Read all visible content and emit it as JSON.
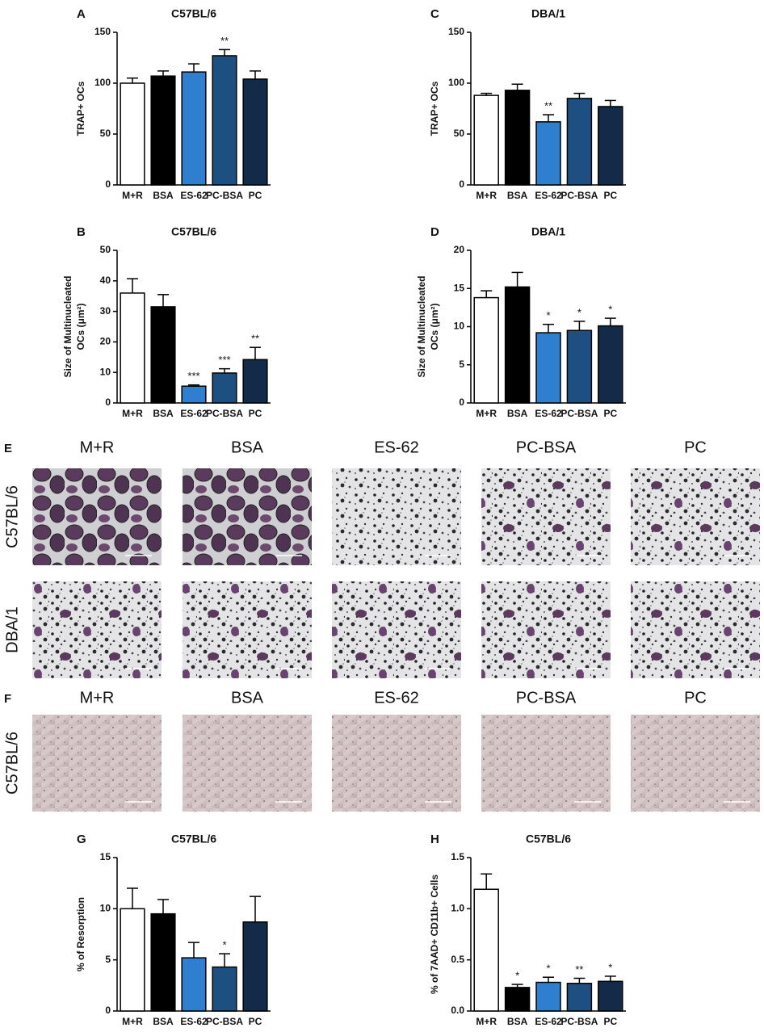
{
  "chart_data": [
    {
      "type": "bar",
      "panel": "A",
      "title": "C57BL/6",
      "ylabel": [
        "TRAP+ OCs"
      ],
      "categories": [
        "M+R",
        "BSA",
        "ES-62",
        "PC-BSA",
        "PC"
      ],
      "values": [
        100,
        107,
        111,
        127,
        104
      ],
      "errors": [
        5,
        5,
        8,
        6,
        8
      ],
      "annotations": [
        null,
        null,
        null,
        "**",
        null
      ],
      "colors": [
        "#ffffff",
        "#000000",
        "#2f7fd0",
        "#1d4f80",
        "#132a48"
      ],
      "ylim": [
        0,
        150
      ],
      "yticks": [
        0,
        50,
        100,
        150
      ]
    },
    {
      "type": "bar",
      "panel": "C",
      "title": "DBA/1",
      "ylabel": [
        "TRAP+ OCs"
      ],
      "categories": [
        "M+R",
        "BSA",
        "ES-62",
        "PC-BSA",
        "PC"
      ],
      "values": [
        88,
        93,
        62,
        85,
        77
      ],
      "errors": [
        2,
        6,
        7,
        5,
        6
      ],
      "annotations": [
        null,
        null,
        "**",
        null,
        null
      ],
      "colors": [
        "#ffffff",
        "#000000",
        "#2f7fd0",
        "#1d4f80",
        "#132a48"
      ],
      "ylim": [
        0,
        150
      ],
      "yticks": [
        0,
        50,
        100,
        150
      ]
    },
    {
      "type": "bar",
      "panel": "B",
      "title": "C57BL/6",
      "ylabel": [
        "Size of Multinucleated",
        "OCs (μm²)"
      ],
      "categories": [
        "M+R",
        "BSA",
        "ES-62",
        "PC-BSA",
        "PC"
      ],
      "values": [
        36,
        31.5,
        5.5,
        9.8,
        14.2
      ],
      "errors": [
        4.7,
        4,
        0.4,
        1.4,
        4
      ],
      "annotations": [
        null,
        null,
        "***",
        "***",
        "**"
      ],
      "colors": [
        "#ffffff",
        "#000000",
        "#2f7fd0",
        "#1d4f80",
        "#132a48"
      ],
      "ylim": [
        0,
        50
      ],
      "yticks": [
        0,
        10,
        20,
        30,
        40,
        50
      ]
    },
    {
      "type": "bar",
      "panel": "D",
      "title": "DBA/1",
      "ylabel": [
        "Size of Multinucleated",
        "OCs (μm²)"
      ],
      "categories": [
        "M+R",
        "BSA",
        "ES-62",
        "PC-BSA",
        "PC"
      ],
      "values": [
        13.8,
        15.2,
        9.2,
        9.5,
        10.1
      ],
      "errors": [
        0.9,
        1.9,
        1.1,
        1.2,
        1
      ],
      "annotations": [
        null,
        null,
        "*",
        "*",
        "*"
      ],
      "colors": [
        "#ffffff",
        "#000000",
        "#2f7fd0",
        "#1d4f80",
        "#132a48"
      ],
      "ylim": [
        0,
        20
      ],
      "yticks": [
        0,
        5,
        10,
        15,
        20
      ]
    },
    {
      "type": "bar",
      "panel": "G",
      "title": "C57BL/6",
      "ylabel": [
        "% of Resorption"
      ],
      "categories": [
        "M+R",
        "BSA",
        "ES-62",
        "PC-BSA",
        "PC"
      ],
      "values": [
        10,
        9.5,
        5.2,
        4.3,
        8.7
      ],
      "errors": [
        2,
        1.4,
        1.5,
        1.3,
        2.5
      ],
      "annotations": [
        null,
        null,
        null,
        "*",
        null
      ],
      "colors": [
        "#ffffff",
        "#000000",
        "#2f7fd0",
        "#1d4f80",
        "#132a48"
      ],
      "ylim": [
        0,
        15
      ],
      "yticks": [
        0,
        5,
        10,
        15
      ]
    },
    {
      "type": "bar",
      "panel": "H",
      "title": "C57BL/6",
      "ylabel": [
        "% of 7AAD+ CD11b+ Cells"
      ],
      "categories": [
        "M+R",
        "BSA",
        "ES-62",
        "PC-BSA",
        "PC"
      ],
      "values": [
        1.19,
        0.23,
        0.28,
        0.27,
        0.29
      ],
      "errors": [
        0.15,
        0.03,
        0.05,
        0.05,
        0.05
      ],
      "annotations": [
        null,
        "*",
        "*",
        "**",
        "*"
      ],
      "colors": [
        "#ffffff",
        "#000000",
        "#2f7fd0",
        "#1d4f80",
        "#132a48"
      ],
      "ylim": [
        0,
        1.5
      ],
      "yticks": [
        {
          "value": 0,
          "label": "0.0"
        },
        0.5,
        {
          "value": 1,
          "label": "1.0"
        },
        1.5
      ]
    }
  ],
  "image_panels": [
    {
      "panel": "E",
      "columns": [
        "M+R",
        "BSA",
        "ES-62",
        "PC-BSA",
        "PC"
      ],
      "rows": [
        "C57BL/6",
        "DBA/1"
      ]
    },
    {
      "panel": "F",
      "columns": [
        "M+R",
        "BSA",
        "ES-62",
        "PC-BSA",
        "PC"
      ],
      "rows": [
        "C57BL/6"
      ]
    }
  ]
}
